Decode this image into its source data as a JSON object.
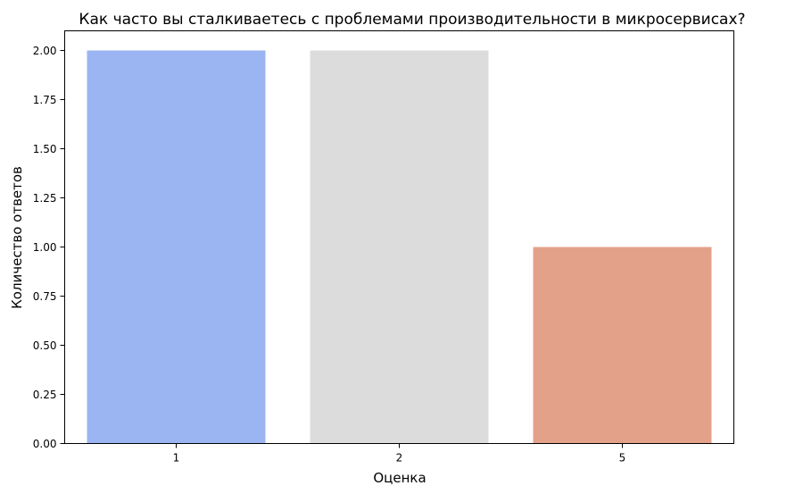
{
  "chart_data": {
    "type": "bar",
    "title": "Как часто вы сталкиваетесь с проблемами производительности в микросервисах?",
    "xlabel": "Оценка",
    "ylabel": "Количество ответов",
    "categories": [
      "1",
      "2",
      "5"
    ],
    "values": [
      2,
      2,
      1
    ],
    "bar_colors": [
      "#9ab5f1",
      "#dcdcdc",
      "#e4a189"
    ],
    "ylim": [
      0,
      2.1
    ],
    "yticks": [
      0,
      0.25,
      0.5,
      0.75,
      1,
      1.25,
      1.5,
      1.75,
      2
    ],
    "ytick_labels": [
      "0.00",
      "0.25",
      "0.50",
      "0.75",
      "1.00",
      "1.25",
      "1.50",
      "1.75",
      "2.00"
    ],
    "grid": false,
    "legend": false
  }
}
